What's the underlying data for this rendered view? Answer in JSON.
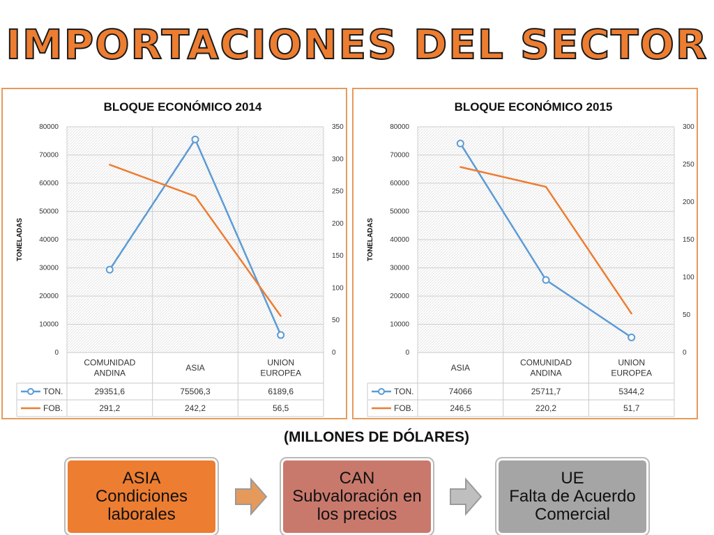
{
  "title": "IMPORTACIONES DEL SECTOR",
  "subtitle": "(MILLONES DE DÓLARES)",
  "colors": {
    "accent": "#ED7D31",
    "ton": "#5B9BD5",
    "fob": "#ED7D31",
    "frame": "#E59A5C"
  },
  "chart_data": [
    {
      "type": "line",
      "title": "BLOQUE ECONÓMICO 2014",
      "ylabel": "TONELADAS",
      "ylim": [
        0,
        80000
      ],
      "yticks": [
        "0",
        "10000",
        "20000",
        "30000",
        "40000",
        "50000",
        "60000",
        "70000",
        "80000"
      ],
      "y2lim": [
        0,
        350
      ],
      "y2ticks": [
        "0",
        "50",
        "100",
        "150",
        "200",
        "250",
        "300",
        "350"
      ],
      "categories": [
        "COMUNIDAD ANDINA",
        "ASIA",
        "UNION EUROPEA"
      ],
      "category_lines": [
        [
          "COMUNIDAD",
          "ANDINA"
        ],
        [
          "ASIA"
        ],
        [
          "UNION",
          "EUROPEA"
        ]
      ],
      "series": [
        {
          "name": "TON.",
          "axis": "left",
          "values": [
            29351.6,
            75506.3,
            6189.6
          ],
          "labels": [
            "29351,6",
            "75506,3",
            "6189,6"
          ]
        },
        {
          "name": "FOB.",
          "axis": "right",
          "values": [
            291.2,
            242.2,
            56.5
          ],
          "labels": [
            "291,2",
            "242,2",
            "56,5"
          ]
        }
      ],
      "grid": true,
      "legend": "data table"
    },
    {
      "type": "line",
      "title": "BLOQUE ECONÓMICO 2015",
      "ylabel": "TONELADAS",
      "ylim": [
        0,
        80000
      ],
      "yticks": [
        "0",
        "10000",
        "20000",
        "30000",
        "40000",
        "50000",
        "60000",
        "70000",
        "80000"
      ],
      "y2lim": [
        0,
        300
      ],
      "y2ticks": [
        "0",
        "50",
        "100",
        "150",
        "200",
        "250",
        "300"
      ],
      "categories": [
        "ASIA",
        "COMUNIDAD ANDINA",
        "UNION EUROPEA"
      ],
      "category_lines": [
        [
          "ASIA"
        ],
        [
          "COMUNIDAD",
          "ANDINA"
        ],
        [
          "UNION",
          "EUROPEA"
        ]
      ],
      "series": [
        {
          "name": "TON.",
          "axis": "left",
          "values": [
            74066,
            25711.7,
            5344.2
          ],
          "labels": [
            "74066",
            "25711,7",
            "5344,2"
          ]
        },
        {
          "name": "FOB.",
          "axis": "right",
          "values": [
            246.5,
            220.2,
            51.7
          ],
          "labels": [
            "246,5",
            "220,2",
            "51,7"
          ]
        }
      ],
      "grid": true,
      "legend": "data table"
    }
  ],
  "flow": [
    {
      "lines": [
        "ASIA",
        "Condiciones",
        "laborales"
      ],
      "bg": "#ED7D31",
      "color": "#111111"
    },
    {
      "lines": [
        "CAN",
        "Subvaloración en",
        "los precios"
      ],
      "bg": "#C9796C",
      "color": "#111111"
    },
    {
      "lines": [
        "UE",
        "Falta de Acuerdo",
        "Comercial"
      ],
      "bg": "#A5A5A5",
      "color": "#111111"
    }
  ]
}
